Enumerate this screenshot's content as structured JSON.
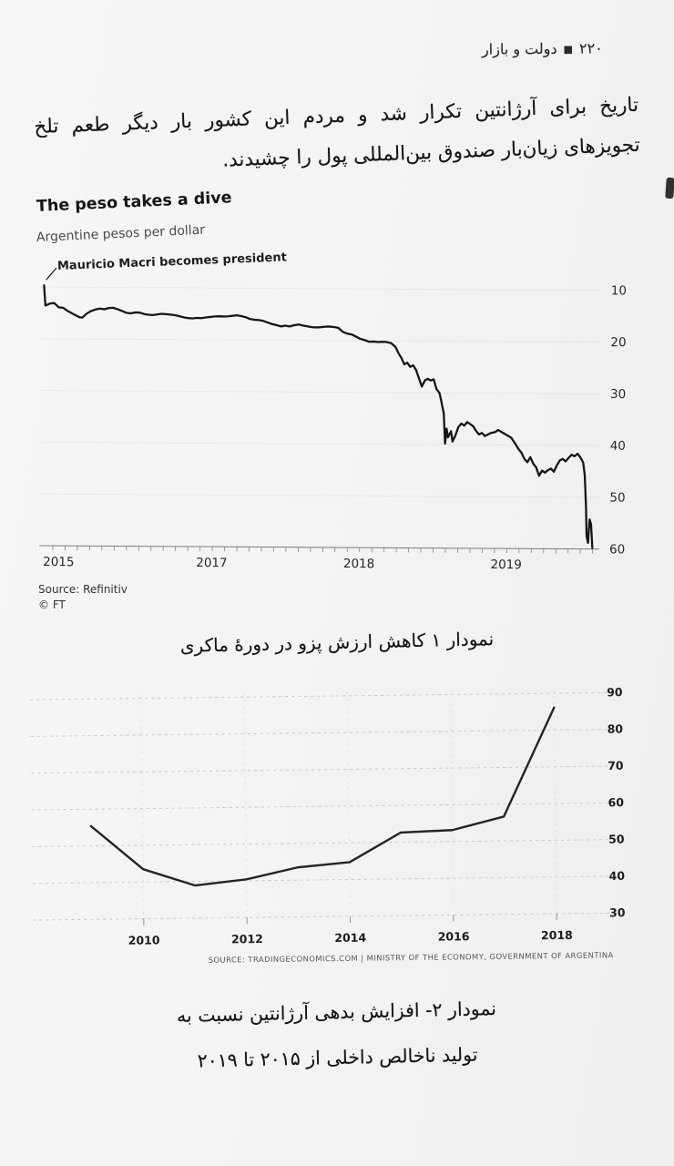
{
  "page_header": {
    "page_number": "۲۲۰",
    "separator": "■",
    "book_title": "دولت و بازار"
  },
  "paragraph": {
    "line1": "تاریخ برای آرژانتین تکرار شد و مردم این کشور بار دیگر طعم تلخ",
    "line2": "تجویزهای زیان‌بار صندوق بین‌المللی پول را چشیدند."
  },
  "captions": {
    "chart1": "نمودار ۱ کاهش ارزش پزو در دورۀ ماکری",
    "chart2_line1": "نمودار ۲- افزایش بدهی آرژانتین نسبت به",
    "chart2_line2": "تولید ناخالص داخلی از ۲۰۱۵ تا ۲۰۱۹"
  },
  "chart_data": [
    {
      "id": "peso-dive",
      "type": "line",
      "title": "The peso takes a dive",
      "subtitle": "Argentine pesos per dollar",
      "annotation": "Mauricio Macri becomes president",
      "source": "Source: Refinitiv",
      "credit": "© FT",
      "ylabel": "Argentine pesos per dollar",
      "y_ticks": [
        10,
        20,
        30,
        40,
        50,
        60
      ],
      "ylim": [
        10,
        60
      ],
      "y_axis_inverted": true,
      "xlim": [
        2015.92,
        2019.7
      ],
      "x_tick_labels": [
        "2015",
        "2017",
        "2018",
        "2019"
      ],
      "x_label_positions": [
        2016.04,
        2017.08,
        2018.08,
        2019.08
      ],
      "grid": "faint-horizontal",
      "legend": "none",
      "line_color": "#161616",
      "points": [
        [
          2015.93,
          9.7
        ],
        [
          2015.94,
          13.6
        ],
        [
          2015.97,
          13.2
        ],
        [
          2016.0,
          13.1
        ],
        [
          2016.03,
          13.9
        ],
        [
          2016.06,
          14.0
        ],
        [
          2016.09,
          14.6
        ],
        [
          2016.13,
          15.2
        ],
        [
          2016.17,
          15.8
        ],
        [
          2016.19,
          15.9
        ],
        [
          2016.22,
          15.1
        ],
        [
          2016.25,
          14.6
        ],
        [
          2016.28,
          14.3
        ],
        [
          2016.31,
          14.1
        ],
        [
          2016.34,
          14.25
        ],
        [
          2016.37,
          14.0
        ],
        [
          2016.4,
          13.95
        ],
        [
          2016.43,
          14.2
        ],
        [
          2016.46,
          14.55
        ],
        [
          2016.49,
          14.9
        ],
        [
          2016.52,
          15.0
        ],
        [
          2016.55,
          14.8
        ],
        [
          2016.58,
          14.85
        ],
        [
          2016.61,
          15.1
        ],
        [
          2016.64,
          15.25
        ],
        [
          2016.67,
          15.3
        ],
        [
          2016.7,
          15.15
        ],
        [
          2016.73,
          15.05
        ],
        [
          2016.76,
          15.1
        ],
        [
          2016.79,
          15.2
        ],
        [
          2016.82,
          15.3
        ],
        [
          2016.85,
          15.5
        ],
        [
          2016.88,
          15.7
        ],
        [
          2016.91,
          15.85
        ],
        [
          2016.94,
          15.9
        ],
        [
          2016.97,
          15.8
        ],
        [
          2017.0,
          15.85
        ],
        [
          2017.03,
          15.7
        ],
        [
          2017.06,
          15.6
        ],
        [
          2017.09,
          15.5
        ],
        [
          2017.12,
          15.45
        ],
        [
          2017.15,
          15.5
        ],
        [
          2017.18,
          15.45
        ],
        [
          2017.21,
          15.35
        ],
        [
          2017.24,
          15.25
        ],
        [
          2017.27,
          15.4
        ],
        [
          2017.3,
          15.6
        ],
        [
          2017.33,
          15.95
        ],
        [
          2017.36,
          16.1
        ],
        [
          2017.39,
          16.15
        ],
        [
          2017.42,
          16.3
        ],
        [
          2017.45,
          16.6
        ],
        [
          2017.48,
          16.9
        ],
        [
          2017.51,
          17.1
        ],
        [
          2017.54,
          17.35
        ],
        [
          2017.57,
          17.2
        ],
        [
          2017.6,
          17.35
        ],
        [
          2017.63,
          17.1
        ],
        [
          2017.66,
          16.95
        ],
        [
          2017.69,
          17.15
        ],
        [
          2017.72,
          17.3
        ],
        [
          2017.75,
          17.45
        ],
        [
          2017.78,
          17.5
        ],
        [
          2017.81,
          17.45
        ],
        [
          2017.84,
          17.35
        ],
        [
          2017.87,
          17.3
        ],
        [
          2017.9,
          17.4
        ],
        [
          2017.93,
          17.55
        ],
        [
          2017.96,
          18.3
        ],
        [
          2017.99,
          18.65
        ],
        [
          2018.02,
          18.8
        ],
        [
          2018.05,
          19.2
        ],
        [
          2018.08,
          19.65
        ],
        [
          2018.11,
          19.9
        ],
        [
          2018.14,
          20.2
        ],
        [
          2018.17,
          20.15
        ],
        [
          2018.2,
          20.25
        ],
        [
          2018.23,
          20.2
        ],
        [
          2018.26,
          20.25
        ],
        [
          2018.29,
          20.45
        ],
        [
          2018.32,
          21.2
        ],
        [
          2018.34,
          22.4
        ],
        [
          2018.36,
          23.3
        ],
        [
          2018.38,
          24.5
        ],
        [
          2018.4,
          24.2
        ],
        [
          2018.42,
          25.0
        ],
        [
          2018.44,
          24.7
        ],
        [
          2018.46,
          25.6
        ],
        [
          2018.48,
          27.2
        ],
        [
          2018.5,
          28.8
        ],
        [
          2018.52,
          27.6
        ],
        [
          2018.54,
          27.3
        ],
        [
          2018.56,
          27.6
        ],
        [
          2018.58,
          27.4
        ],
        [
          2018.6,
          29.3
        ],
        [
          2018.62,
          30.0
        ],
        [
          2018.63,
          31.2
        ],
        [
          2018.65,
          34.0
        ],
        [
          2018.66,
          39.8
        ],
        [
          2018.67,
          36.9
        ],
        [
          2018.68,
          38.6
        ],
        [
          2018.7,
          37.4
        ],
        [
          2018.71,
          39.4
        ],
        [
          2018.73,
          38.2
        ],
        [
          2018.75,
          36.6
        ],
        [
          2018.77,
          35.9
        ],
        [
          2018.79,
          36.3
        ],
        [
          2018.81,
          35.6
        ],
        [
          2018.83,
          36.0
        ],
        [
          2018.85,
          36.4
        ],
        [
          2018.87,
          37.3
        ],
        [
          2018.89,
          38.0
        ],
        [
          2018.91,
          37.7
        ],
        [
          2018.93,
          38.3
        ],
        [
          2018.95,
          38.0
        ],
        [
          2018.97,
          37.7
        ],
        [
          2019.0,
          37.5
        ],
        [
          2019.02,
          37.1
        ],
        [
          2019.05,
          37.6
        ],
        [
          2019.08,
          38.1
        ],
        [
          2019.11,
          38.6
        ],
        [
          2019.14,
          39.9
        ],
        [
          2019.16,
          40.8
        ],
        [
          2019.18,
          41.5
        ],
        [
          2019.2,
          42.7
        ],
        [
          2019.22,
          43.3
        ],
        [
          2019.24,
          42.3
        ],
        [
          2019.26,
          43.6
        ],
        [
          2019.28,
          44.3
        ],
        [
          2019.3,
          45.9
        ],
        [
          2019.32,
          44.9
        ],
        [
          2019.34,
          45.3
        ],
        [
          2019.36,
          44.8
        ],
        [
          2019.38,
          44.5
        ],
        [
          2019.4,
          45.1
        ],
        [
          2019.42,
          43.9
        ],
        [
          2019.44,
          42.9
        ],
        [
          2019.46,
          42.6
        ],
        [
          2019.48,
          43.1
        ],
        [
          2019.5,
          42.4
        ],
        [
          2019.52,
          41.8
        ],
        [
          2019.54,
          42.1
        ],
        [
          2019.56,
          41.6
        ],
        [
          2019.58,
          42.3
        ],
        [
          2019.59,
          42.8
        ],
        [
          2019.6,
          43.4
        ],
        [
          2019.61,
          45.8
        ],
        [
          2019.62,
          52.0
        ],
        [
          2019.625,
          57.5
        ],
        [
          2019.635,
          58.8
        ],
        [
          2019.645,
          54.3
        ],
        [
          2019.655,
          55.2
        ],
        [
          2019.665,
          59.8
        ]
      ]
    },
    {
      "id": "argentina-debt-to-gdp",
      "type": "line",
      "categories": [
        2009,
        2010,
        2011,
        2012,
        2013,
        2014,
        2015,
        2016,
        2017,
        2018
      ],
      "values": [
        55.4,
        43.5,
        38.9,
        40.4,
        43.5,
        44.7,
        52.6,
        53.1,
        56.6,
        86.1
      ],
      "y_ticks": [
        90,
        80,
        70,
        60,
        50,
        40,
        30
      ],
      "ylim": [
        30,
        90
      ],
      "x_tick_labels": [
        "2010",
        "2012",
        "2014",
        "2016",
        "2018"
      ],
      "x_label_years": [
        2010,
        2012,
        2014,
        2016,
        2018
      ],
      "grid": "dashed",
      "legend": "none",
      "line_color": "#242424",
      "source": "SOURCE: TRADINGECONOMICS.COM | MINISTRY OF THE ECONOMY, GOVERNMENT OF ARGENTINA"
    }
  ]
}
